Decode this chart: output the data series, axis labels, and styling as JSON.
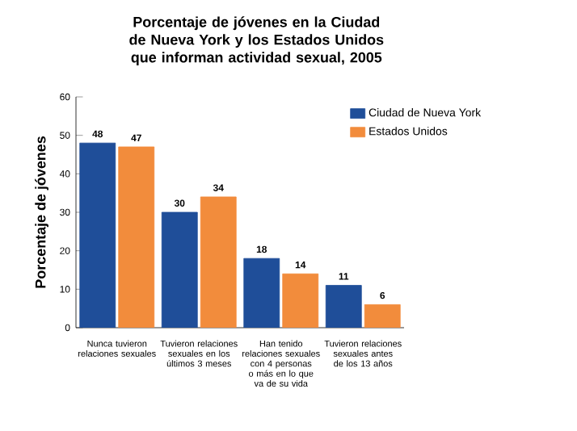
{
  "chart_data": {
    "type": "bar",
    "title": "Porcentaje de jóvenes en la Ciudad de Nueva York y los Estados Unidos que informan actividad sexual, 2005",
    "ylabel": "Porcentaje de jóvenes",
    "categories": [
      "Nunca tuvieron relaciones sexuales",
      "Tuvieron relaciones sexuales en los últimos 3 meses",
      "Han tenido relaciones sexuales con 4 personas o más en lo que va de su vida",
      "Tuvieron relaciones sexuales antes de los 13 años"
    ],
    "series": [
      {
        "name": "Ciudad de Nueva York",
        "color": "#1f4e99",
        "values": [
          48,
          30,
          18,
          11
        ]
      },
      {
        "name": "Estados Unidos",
        "color": "#f28c3c",
        "values": [
          47,
          34,
          14,
          6
        ]
      }
    ],
    "ylim": [
      0,
      60
    ],
    "yticks": [
      0,
      10,
      20,
      30,
      40,
      50,
      60
    ],
    "data_labels": true,
    "legend": "top right"
  }
}
